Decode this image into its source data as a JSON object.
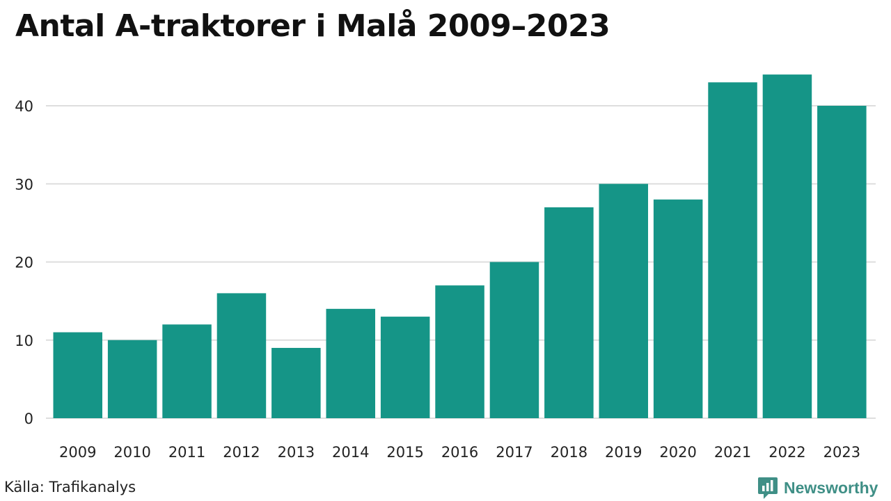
{
  "title": "Antal A-traktorer i Malå 2009–2023",
  "source": "Källa: Trafikanalys",
  "brand": {
    "name": "Newsworthy",
    "color": "#3f8f86"
  },
  "colors": {
    "bar": "#159587",
    "grid": "#dedede",
    "axis_text": "#222222"
  },
  "chart_data": {
    "type": "bar",
    "title": "Antal A-traktorer i Malå 2009–2023",
    "xlabel": "",
    "ylabel": "",
    "categories": [
      "2009",
      "2010",
      "2011",
      "2012",
      "2013",
      "2014",
      "2015",
      "2016",
      "2017",
      "2018",
      "2019",
      "2020",
      "2021",
      "2022",
      "2023"
    ],
    "values": [
      11,
      10,
      12,
      16,
      9,
      14,
      13,
      17,
      20,
      27,
      30,
      28,
      43,
      44,
      40
    ],
    "yticks": [
      0,
      10,
      20,
      30,
      40
    ],
    "ylim": [
      0,
      46
    ],
    "grid": true,
    "legend": "none"
  }
}
